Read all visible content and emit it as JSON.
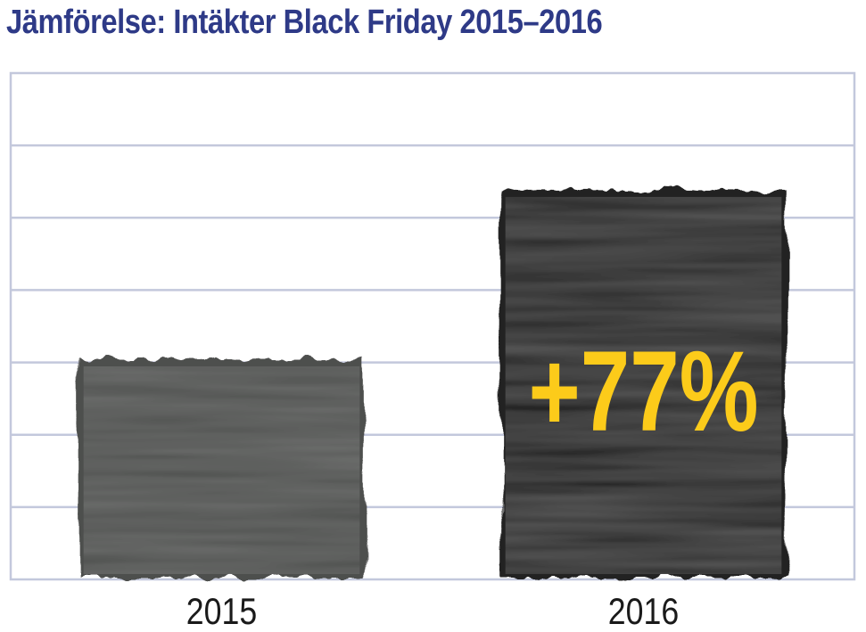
{
  "colors": {
    "title": "#2e3a87",
    "grid": "#c3c8dc",
    "bar_2015": "#4e4f4e",
    "bar_2016": "#232423",
    "annotation": "#fccb1a",
    "tick_text": "#1a1a1a"
  },
  "chart_data": {
    "type": "bar",
    "title": "Jämförelse: Intäkter Black Friday 2015–2016",
    "xlabel": "",
    "ylabel": "",
    "categories": [
      "2015",
      "2016"
    ],
    "values": [
      100,
      177
    ],
    "ylim": [
      0,
      230
    ],
    "grid": true,
    "legend": "none",
    "annotations": [
      {
        "category": "2016",
        "text": "+77%"
      }
    ]
  }
}
